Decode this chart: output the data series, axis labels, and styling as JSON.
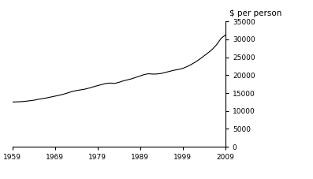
{
  "years": [
    1959,
    1960,
    1961,
    1962,
    1963,
    1964,
    1965,
    1966,
    1967,
    1968,
    1969,
    1970,
    1971,
    1972,
    1973,
    1974,
    1975,
    1976,
    1977,
    1978,
    1979,
    1980,
    1981,
    1982,
    1983,
    1984,
    1985,
    1986,
    1987,
    1988,
    1989,
    1990,
    1991,
    1992,
    1993,
    1994,
    1995,
    1996,
    1997,
    1998,
    1999,
    2000,
    2001,
    2002,
    2003,
    2004,
    2005,
    2006,
    2007,
    2008,
    2009
  ],
  "values": [
    12500,
    12550,
    12600,
    12700,
    12850,
    13000,
    13250,
    13450,
    13650,
    13900,
    14150,
    14400,
    14700,
    15050,
    15450,
    15700,
    15900,
    16100,
    16400,
    16750,
    17100,
    17400,
    17700,
    17800,
    17700,
    18000,
    18400,
    18700,
    19000,
    19400,
    19800,
    20200,
    20400,
    20300,
    20350,
    20500,
    20800,
    21100,
    21400,
    21600,
    21900,
    22400,
    23000,
    23700,
    24500,
    25400,
    26300,
    27300,
    28600,
    30300,
    31200
  ],
  "line_color": "#000000",
  "line_width": 0.8,
  "ylabel": "$ per person",
  "xlim": [
    1959,
    2009
  ],
  "ylim": [
    0,
    35000
  ],
  "xticks": [
    1959,
    1969,
    1979,
    1989,
    1999,
    2009
  ],
  "yticks": [
    0,
    5000,
    10000,
    15000,
    20000,
    25000,
    30000,
    35000
  ],
  "background_color": "#ffffff",
  "tick_fontsize": 6.5,
  "ylabel_fontsize": 7.5
}
